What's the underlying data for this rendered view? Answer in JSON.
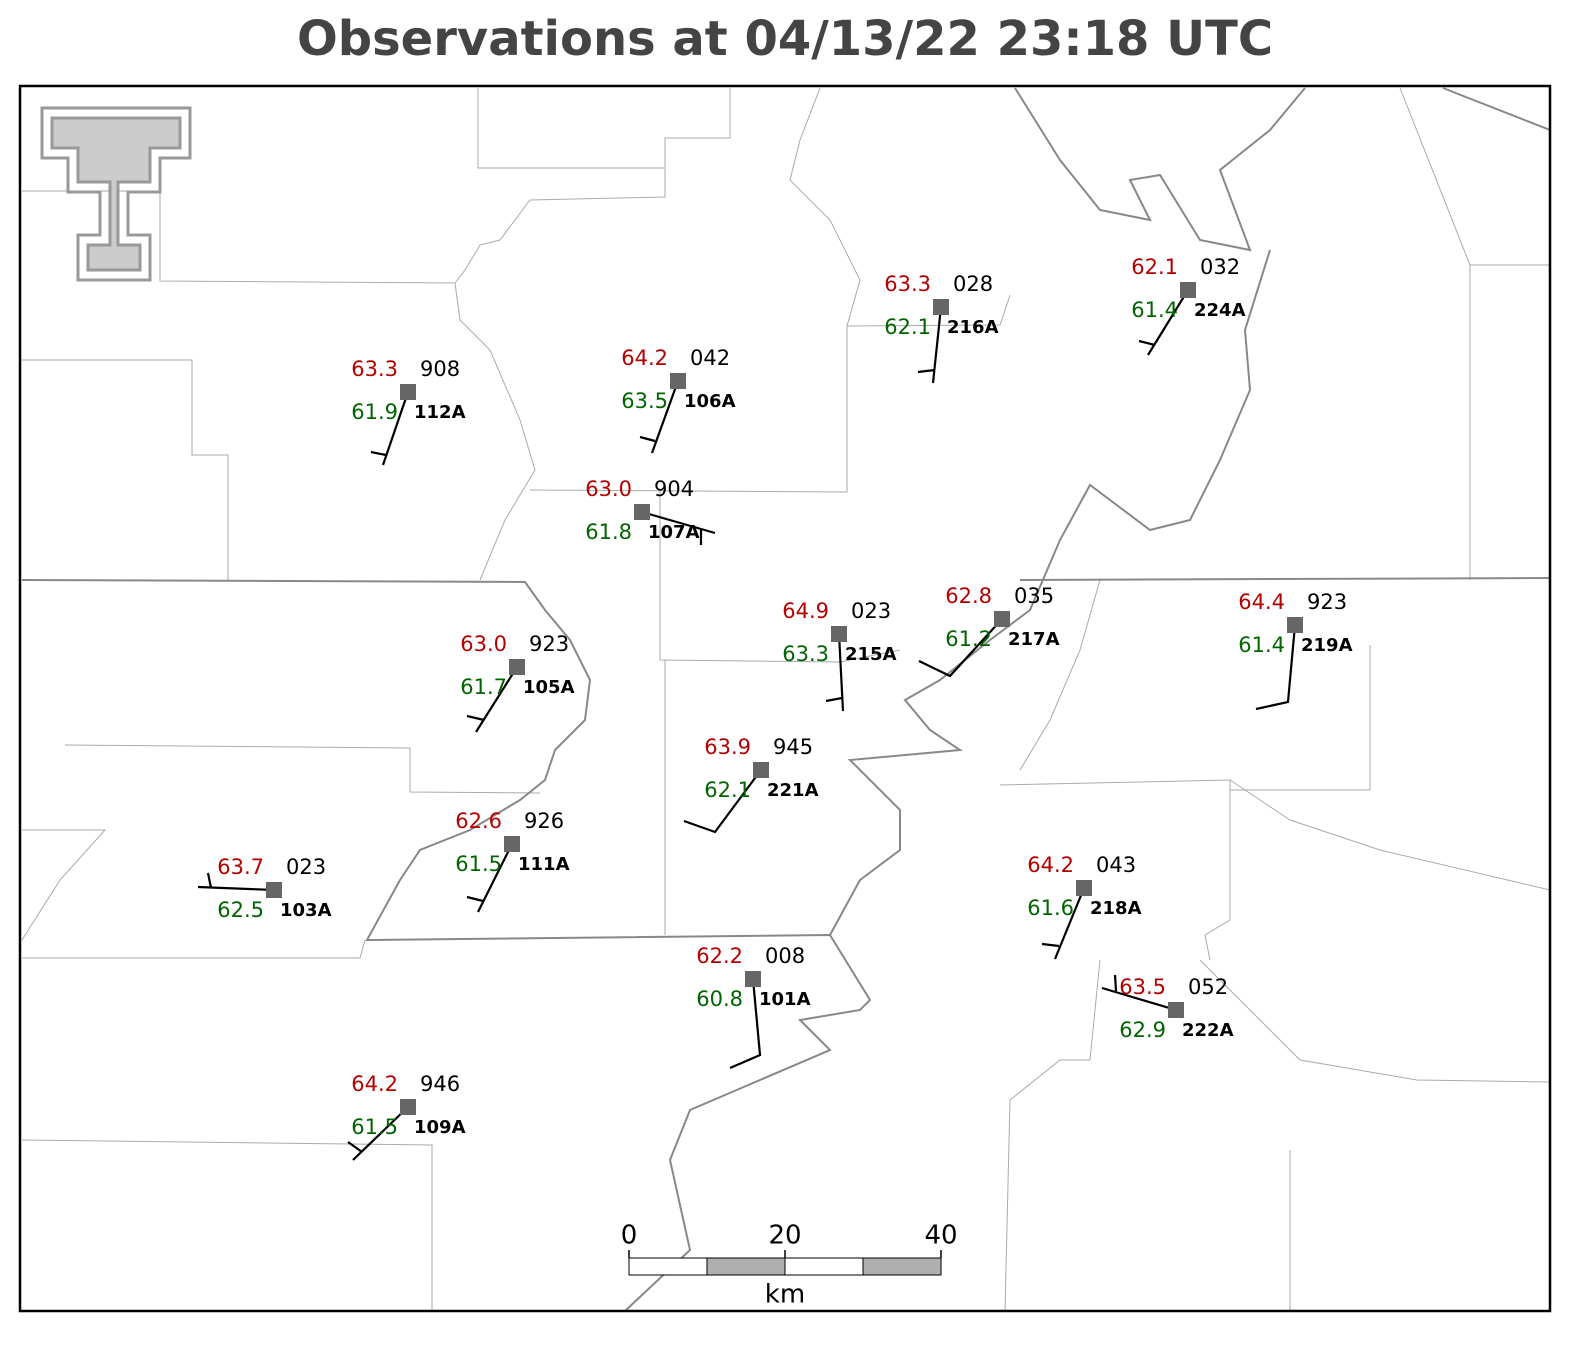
{
  "title": "Observations at 04/13/22 23:18 UTC",
  "stations": [
    {
      "id": "112A",
      "temperature": 63.3,
      "dewpoint": 61.9,
      "pressure": "908"
    },
    {
      "id": "106A",
      "temperature": 64.2,
      "dewpoint": 63.5,
      "pressure": "042"
    },
    {
      "id": "107A",
      "temperature": {
        "value": 63,
        "label": "63.0"
      },
      "dewpoint": 61.8,
      "pressure": "904"
    },
    {
      "id": "216A",
      "temperature": 63.3,
      "dewpoint": 62.1,
      "pressure": "028"
    },
    {
      "id": "224A",
      "temperature": 62.1,
      "dewpoint": 61.4,
      "pressure": "032"
    },
    {
      "id": "105A",
      "temperature": {
        "value": 63,
        "label": "63.0"
      },
      "dewpoint": 61.7,
      "pressure": "923"
    },
    {
      "id": "215A",
      "temperature": 64.9,
      "dewpoint": 63.3,
      "pressure": "023"
    },
    {
      "id": "217A",
      "temperature": 62.8,
      "dewpoint": 61.2,
      "pressure": "035"
    },
    {
      "id": "219A",
      "temperature": 64.4,
      "dewpoint": 61.4,
      "pressure": "923"
    },
    {
      "id": "221A",
      "temperature": 63.9,
      "dewpoint": 62.1,
      "pressure": "945"
    },
    {
      "id": "111A",
      "temperature": 62.6,
      "dewpoint": 61.5,
      "pressure": "926"
    },
    {
      "id": "103A",
      "temperature": 63.7,
      "dewpoint": 62.5,
      "pressure": "023"
    },
    {
      "id": "218A",
      "temperature": 64.2,
      "dewpoint": 61.6,
      "pressure": "043"
    },
    {
      "id": "101A",
      "temperature": 62.2,
      "dewpoint": 60.8,
      "pressure": "008"
    },
    {
      "id": "222A",
      "temperature": 63.5,
      "dewpoint": 62.9,
      "pressure": "052"
    },
    {
      "id": "109A",
      "temperature": 64.2,
      "dewpoint": 61.5,
      "pressure": "946"
    }
  ],
  "scale_bar": {
    "ticks": [
      0,
      20,
      40
    ],
    "unit": "km"
  }
}
